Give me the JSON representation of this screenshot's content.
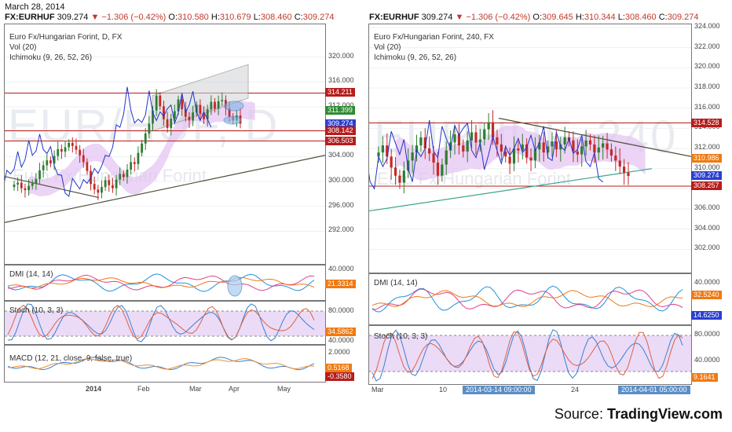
{
  "header": {
    "date": "March 28, 2014",
    "left_quote": {
      "symbol": "FX:EURHUF",
      "last": "309.274",
      "change": "▼ −1.306 (−0.42%)",
      "o_label": "O:",
      "o": "310.580",
      "h_label": "H:",
      "h": "310.679",
      "l_label": "L:",
      "l": "308.460",
      "c_label": "C:",
      "c": "309.274"
    },
    "right_quote": {
      "symbol": "FX:EURHUF",
      "last": "309.274",
      "change": "▼ −1.306 (−0.42%)",
      "o_label": "O:",
      "o": "309.645",
      "h_label": "H:",
      "h": "310.344",
      "l_label": "L:",
      "l": "308.460",
      "c_label": "C:",
      "c": "309.274"
    }
  },
  "watermark": {
    "left": "EUR/HUF, D",
    "right": "EURHUF, 240",
    "name": "Euro Fx/Hungarian Forint"
  },
  "source": {
    "prefix": "Source: ",
    "brand": "TradingView.com"
  },
  "colors": {
    "candle_up": "#2e7d32",
    "candle_down": "#c62828",
    "price_line": "#2233cc",
    "cloud": "#e4c6f2",
    "sr_line": "#b71c1c",
    "trend_line": "#4e4e3a",
    "dmi_plus": "#1f8fe0",
    "dmi_minus": "#e0408a",
    "adx": "#f07a18",
    "stoch_k": "#3a7fd0",
    "stoch_d": "#e06040",
    "macd": "#3a7fd0",
    "signal": "#f09030",
    "badge_blue": "#2a3fd0",
    "badge_red": "#b71c1c",
    "badge_orange": "#ef7a12",
    "badge_green": "#2e8b32"
  },
  "chart_data": [
    {
      "type": "candlestick",
      "title": "Euro Fx/Hungarian Forint, D, FX",
      "indicators": [
        "Vol (20)",
        "Ichimoku (9, 26, 52, 26)"
      ],
      "ylim": [
        288,
        324
      ],
      "y_ticks": [
        "320.000",
        "316.000",
        "312.000",
        "308.000",
        "304.000",
        "300.000",
        "296.000",
        "292.000"
      ],
      "x_ticks": [
        "2014",
        "Feb",
        "Mar",
        "Apr",
        "May"
      ],
      "price_badges": [
        {
          "value": "314.211",
          "color": "red"
        },
        {
          "value": "311.399",
          "color": "green"
        },
        {
          "value": "309.274",
          "color": "blue"
        },
        {
          "value": "308.142",
          "color": "red"
        },
        {
          "value": "306.503",
          "color": "red"
        }
      ],
      "horizontal_levels": [
        314.211,
        308.142,
        306.503
      ],
      "series": [
        {
          "name": "",
          "close": [
            299.5,
            299.8,
            298.9,
            298.6,
            299.3,
            299.7,
            300.4,
            301.8,
            302.6,
            303.4,
            302.9,
            304.1,
            305.2,
            304.8,
            305.5,
            306.2,
            305.7,
            305.1,
            304.2,
            303.1,
            301.7,
            299.6,
            298.7,
            298.2,
            299.1,
            300.2,
            299.4,
            298.9,
            300.3,
            301.2,
            300.7,
            301.9,
            303.1,
            302.8,
            304.6,
            306.1,
            307.7,
            309.3,
            311.4,
            313.8,
            312.1,
            310.0,
            308.6,
            310.1,
            311.3,
            313.2,
            311.6,
            310.4,
            309.8,
            311.1,
            312.3,
            310.9,
            310.0,
            311.6,
            312.8,
            311.7,
            312.9,
            313.1,
            311.8,
            310.4,
            309.8,
            310.6,
            309.3
          ]
        }
      ],
      "panels": [
        {
          "title": "DMI (14, 14)",
          "y_ticks": [
            "40.0000"
          ],
          "badges": [
            {
              "value": "21.3314",
              "color": "orange"
            }
          ]
        },
        {
          "title": "Stoch (10, 3, 3)",
          "y_ticks": [
            "80.0000",
            "40.0000"
          ],
          "badges": [
            {
              "value": "34.5862",
              "color": "orange"
            }
          ]
        },
        {
          "title": "MACD (12, 21, close, 9, false, true)",
          "y_ticks": [
            "2.0000"
          ],
          "badges": [
            {
              "value": "0.5168",
              "color": "orange"
            },
            {
              "value": "-0.3580",
              "color": "red"
            }
          ]
        }
      ]
    },
    {
      "type": "candlestick",
      "title": "Euro Fx/Hungarian Forint, 240, FX",
      "indicators": [
        "Vol (20)",
        "Ichimoku (9, 26, 52, 26)"
      ],
      "ylim": [
        300,
        324
      ],
      "y_ticks": [
        "324.000",
        "322.000",
        "320.000",
        "318.000",
        "316.000",
        "314.000",
        "312.000",
        "310.000",
        "308.000",
        "306.000",
        "304.000",
        "302.000"
      ],
      "x_ticks": [
        "Mar",
        "10",
        "17",
        "24"
      ],
      "time_badges": [
        "2014-03-14 09:00:00",
        "2014-04-01 05:00:00"
      ],
      "price_badges": [
        {
          "value": "314.528",
          "color": "red"
        },
        {
          "value": "310.986",
          "color": "orange"
        },
        {
          "value": "309.274",
          "color": "blue"
        },
        {
          "value": "308.257",
          "color": "red"
        }
      ],
      "horizontal_levels": [
        314.528,
        308.257
      ],
      "series": [
        {
          "name": "",
          "close": [
            311.6,
            312.3,
            311.2,
            310.1,
            309.3,
            308.6,
            309.8,
            310.8,
            311.6,
            312.3,
            313.1,
            312.0,
            311.5,
            310.6,
            309.3,
            310.4,
            311.8,
            312.6,
            313.4,
            312.3,
            311.7,
            312.8,
            313.6,
            312.6,
            312.9,
            313.9,
            314.6,
            313.1,
            312.4,
            311.7,
            311.2,
            310.5,
            312.0,
            311.8,
            312.4,
            311.1,
            310.8,
            311.9,
            312.6,
            311.6,
            312.2,
            312.7,
            311.9,
            312.4,
            313.1,
            312.8,
            311.7,
            311.4,
            312.2,
            312.8,
            312.4,
            311.6,
            312.1,
            312.5,
            311.9,
            311.3,
            310.8,
            310.2,
            309.6,
            309.274
          ]
        }
      ],
      "panels": [
        {
          "title": "DMI (14, 14)",
          "y_ticks": [
            "40.0000"
          ],
          "badges": [
            {
              "value": "32.5240",
              "color": "orange"
            },
            {
              "value": "14.6250",
              "color": "blue"
            }
          ]
        },
        {
          "title": "Stoch (10, 3, 3)",
          "y_ticks": [
            "80.0000",
            "40.0000"
          ],
          "badges": [
            {
              "value": "9.1641",
              "color": "orange"
            }
          ]
        }
      ]
    }
  ]
}
